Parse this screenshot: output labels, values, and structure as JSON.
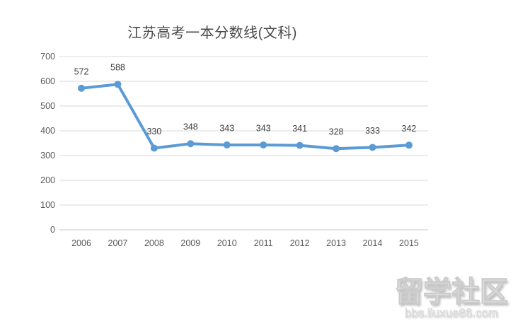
{
  "title": "江苏高考一本分数线(文科)",
  "chart_data": {
    "type": "line",
    "title": "江苏高考一本分数线(文科)",
    "categories": [
      "2006",
      "2007",
      "2008",
      "2009",
      "2010",
      "2011",
      "2012",
      "2013",
      "2014",
      "2015"
    ],
    "values": [
      572,
      588,
      330,
      348,
      343,
      343,
      341,
      328,
      333,
      342
    ],
    "xlabel": "",
    "ylabel": "",
    "ylim": [
      0,
      700
    ],
    "yticks": [
      700,
      600,
      500,
      400,
      300,
      200,
      100,
      0
    ],
    "grid": true,
    "legend": false,
    "data_labels": true,
    "series_name": "一本分数线(文科)"
  },
  "watermark": {
    "brand": "留学社区",
    "url": "bbs.liuxue86.com"
  },
  "colors": {
    "line": "#5b9bd5",
    "marker": "#5b9bd5",
    "gridline": "#d9d9d9",
    "axis_line": "#c6c6c6",
    "axis_label": "#595959",
    "data_label": "#404040",
    "title": "#4a4a4a",
    "background": "#ffffff",
    "watermark_fill": "#ffffff",
    "watermark_edge": "#cccccc"
  }
}
